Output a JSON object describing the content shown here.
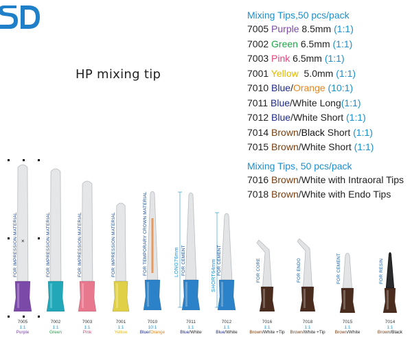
{
  "logo": {
    "text": "SD",
    "color": "#1f7fc8",
    "name": "sd-logo"
  },
  "page_title": "HP mixing tip",
  "catalog": {
    "section1": "Mixing Tips,50 pcs/pack",
    "section2": "Mixing Tips, 50 pcs/pack",
    "items1": [
      {
        "code": "7005",
        "parts": [
          {
            "t": "Purple",
            "c": "#7a4aa8"
          },
          {
            "t": " 8.5mm ",
            "c": "#222"
          },
          {
            "t": "(1:1)",
            "c": "#1a8fd0"
          }
        ]
      },
      {
        "code": "7002",
        "parts": [
          {
            "t": "Green",
            "c": "#1aa845"
          },
          {
            "t": " 6.5mm ",
            "c": "#222"
          },
          {
            "t": "(1:1)",
            "c": "#1a8fd0"
          }
        ]
      },
      {
        "code": "7003",
        "parts": [
          {
            "t": "Pink",
            "c": "#e0447e"
          },
          {
            "t": " 6.5mm ",
            "c": "#222"
          },
          {
            "t": "(1:1)",
            "c": "#1a8fd0"
          }
        ]
      },
      {
        "code": "7001",
        "parts": [
          {
            "t": "Yellow",
            "c": "#e6b800"
          },
          {
            "t": "  5.0mm ",
            "c": "#222"
          },
          {
            "t": "(1:1)",
            "c": "#1a8fd0"
          }
        ]
      },
      {
        "code": "7010",
        "parts": [
          {
            "t": "Blue",
            "c": "#1e2a8a"
          },
          {
            "t": "/",
            "c": "#222"
          },
          {
            "t": "Orange",
            "c": "#e8851f"
          },
          {
            "t": " (10:1)",
            "c": "#1a8fd0"
          }
        ]
      },
      {
        "code": "7011",
        "parts": [
          {
            "t": "Blue",
            "c": "#1e2a8a"
          },
          {
            "t": "/White Long",
            "c": "#222"
          },
          {
            "t": "(1:1)",
            "c": "#1a8fd0"
          }
        ]
      },
      {
        "code": "7012",
        "parts": [
          {
            "t": "Blue",
            "c": "#1e2a8a"
          },
          {
            "t": "/White Short ",
            "c": "#222"
          },
          {
            "t": "(1:1)",
            "c": "#1a8fd0"
          }
        ]
      },
      {
        "code": "7014",
        "parts": [
          {
            "t": "Brown",
            "c": "#7a3b0e"
          },
          {
            "t": "/",
            "c": "#222"
          },
          {
            "t": "Black",
            "c": "#111"
          },
          {
            "t": " Short ",
            "c": "#222"
          },
          {
            "t": "(1:1)",
            "c": "#1a8fd0"
          }
        ]
      },
      {
        "code": "7015",
        "parts": [
          {
            "t": "Brown",
            "c": "#7a3b0e"
          },
          {
            "t": "/White Short ",
            "c": "#222"
          },
          {
            "t": "(1:1)",
            "c": "#1a8fd0"
          }
        ]
      }
    ],
    "items2": [
      {
        "code": "7016",
        "parts": [
          {
            "t": "Brown",
            "c": "#7a3b0e"
          },
          {
            "t": "/White with Intraoral Tips",
            "c": "#222"
          }
        ]
      },
      {
        "code": "7018",
        "parts": [
          {
            "t": "Brown",
            "c": "#7a3b0e"
          },
          {
            "t": "/White with Endo Tips",
            "c": "#222"
          }
        ]
      }
    ]
  },
  "tips": [
    {
      "code": "7005",
      "ratio": "1:1",
      "label": "FOR IMPRESSION MATERIAL",
      "base_color": "#7b4aa8",
      "caption": [
        {
          "t": "Purple",
          "c": "#7a4aa8"
        }
      ]
    },
    {
      "code": "7002",
      "ratio": "1:1",
      "label": "FOR IMPRESSION MATERIAL",
      "base_color": "#22a7b8",
      "caption": [
        {
          "t": "Green",
          "c": "#1aa845"
        }
      ]
    },
    {
      "code": "7003",
      "ratio": "1:1",
      "label": "FOR IMPRESSION MATERIAL",
      "base_color": "#e8788e",
      "caption": [
        {
          "t": "Pink",
          "c": "#e0447e"
        }
      ]
    },
    {
      "code": "7001",
      "ratio": "1:1",
      "label": "FOR IMPRESSION MATERIAL",
      "base_color": "#e0d048",
      "caption": [
        {
          "t": "Yellow",
          "c": "#e6b800"
        }
      ]
    },
    {
      "code": "7010",
      "ratio": "10:1",
      "label": "FOR TEMPORARY CROWN MATERIAL",
      "base_color": "#2b82c9",
      "caption": [
        {
          "t": "Blue",
          "c": "#1e2a8a"
        },
        {
          "t": "/",
          "c": "#222"
        },
        {
          "t": "Orange",
          "c": "#e8851f"
        }
      ]
    },
    {
      "code": "7011",
      "ratio": "1:1",
      "label": "FOR CEMENT",
      "base_color": "#2b82c9",
      "size_label": "LONG76mm",
      "caption": [
        {
          "t": "Blue",
          "c": "#1e2a8a"
        },
        {
          "t": "/White",
          "c": "#222"
        }
      ]
    },
    {
      "code": "7012",
      "ratio": "1:1",
      "label": "FOR CEMENT",
      "base_color": "#2b82c9",
      "size_label": "SHORT64mm",
      "caption": [
        {
          "t": "Blue",
          "c": "#1e2a8a"
        },
        {
          "t": "/White",
          "c": "#222"
        }
      ]
    },
    {
      "code": "7016",
      "ratio": "1:1",
      "label": "FOR CORE",
      "base_color": "#4a2c1e",
      "caption": [
        {
          "t": "Brown",
          "c": "#7a3b0e"
        },
        {
          "t": "/White",
          "c": "#222"
        },
        {
          "t": " +Tip",
          "c": "#222"
        }
      ]
    },
    {
      "code": "7018",
      "ratio": "1:1",
      "label": "FOR ENDO",
      "base_color": "#4a2c1e",
      "caption": [
        {
          "t": "Brown",
          "c": "#7a3b0e"
        },
        {
          "t": "/White",
          "c": "#222"
        },
        {
          "t": " +Tip",
          "c": "#222"
        }
      ]
    },
    {
      "code": "7015",
      "ratio": "1:1",
      "label": "FOR CEMENT",
      "base_color": "#4a2c1e",
      "caption": [
        {
          "t": "Brown",
          "c": "#7a3b0e"
        },
        {
          "t": "/White",
          "c": "#222"
        }
      ]
    },
    {
      "code": "7014",
      "ratio": "1:1",
      "label": "FOR RESIN",
      "base_color": "#4a2c1e",
      "caption": [
        {
          "t": "Brown",
          "c": "#7a3b0e"
        },
        {
          "t": "/Black",
          "c": "#111"
        }
      ]
    }
  ]
}
